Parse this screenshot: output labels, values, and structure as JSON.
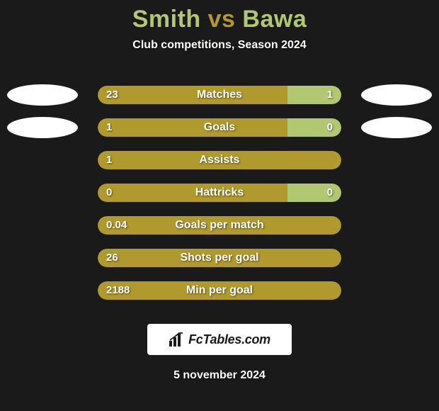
{
  "colors": {
    "background": "#1a1a1a",
    "player1_accent": "#b09a2e",
    "player2_accent": "#b2c771",
    "text": "#ffffff",
    "badge_bg": "#ffffff",
    "badge_text": "#1a1a1a"
  },
  "header": {
    "player1_name": "Smith",
    "vs_word": "vs",
    "player2_name": "Bawa",
    "subtitle": "Club competitions, Season 2024"
  },
  "stats": [
    {
      "label": "Matches",
      "left_val": "23",
      "right_val": "1",
      "left_pct": 78,
      "right_pct": 22
    },
    {
      "label": "Goals",
      "left_val": "1",
      "right_val": "0",
      "left_pct": 78,
      "right_pct": 22
    },
    {
      "label": "Assists",
      "left_val": "1",
      "right_val": null,
      "left_pct": 100,
      "right_pct": 0
    },
    {
      "label": "Hattricks",
      "left_val": "0",
      "right_val": "0",
      "left_pct": 78,
      "right_pct": 22
    },
    {
      "label": "Goals per match",
      "left_val": "0.04",
      "right_val": null,
      "left_pct": 100,
      "right_pct": 0
    },
    {
      "label": "Shots per goal",
      "left_val": "26",
      "right_val": null,
      "left_pct": 100,
      "right_pct": 0
    },
    {
      "label": "Min per goal",
      "left_val": "2188",
      "right_val": null,
      "left_pct": 100,
      "right_pct": 0
    }
  ],
  "avatars_show_on_rows": [
    0,
    1
  ],
  "logo_text": "FcTables.com",
  "date_text": "5 november 2024"
}
